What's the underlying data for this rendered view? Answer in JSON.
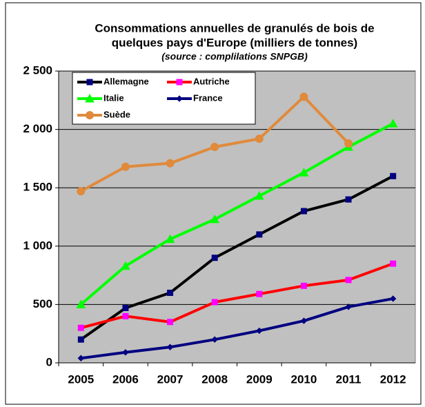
{
  "chart_data": {
    "type": "line",
    "title": [
      "Consommations annuelles de granulés de bois de",
      "quelques pays d'Europe (milliers de tonnes)"
    ],
    "subtitle": "(source : complilations SNPGB)",
    "categories": [
      "2005",
      "2006",
      "2007",
      "2008",
      "2009",
      "2010",
      "2011",
      "2012"
    ],
    "series": [
      {
        "name": "Allemagne",
        "color": "#000000",
        "marker": "square",
        "values": [
          200,
          470,
          600,
          900,
          1100,
          1300,
          1400,
          1600
        ]
      },
      {
        "name": "Autriche",
        "color": "#ff0000",
        "marker": "square",
        "values": [
          300,
          400,
          350,
          520,
          590,
          660,
          710,
          850
        ]
      },
      {
        "name": "Italie",
        "color": "#00ff00",
        "marker": "triangle",
        "values": [
          500,
          830,
          1060,
          1230,
          1430,
          1630,
          1850,
          2050
        ]
      },
      {
        "name": "France",
        "color": "#000080",
        "marker": "diamond",
        "values": [
          40,
          90,
          135,
          200,
          275,
          360,
          480,
          550
        ]
      },
      {
        "name": "Suède",
        "color": "#e08a3c",
        "marker": "circle",
        "values": [
          1470,
          1680,
          1710,
          1850,
          1920,
          2280,
          1880,
          null
        ]
      }
    ],
    "ylim": [
      0,
      2500
    ],
    "yticks": [
      0,
      500,
      {
        "value": 1000,
        "label": "1 000"
      },
      {
        "value": 1500,
        "label": "1 500"
      },
      {
        "value": 2000,
        "label": "2 000"
      },
      {
        "value": 2500,
        "label": "2 500"
      }
    ],
    "grid": true,
    "plot_background": "#c0c0c0",
    "legend": "upper left"
  }
}
